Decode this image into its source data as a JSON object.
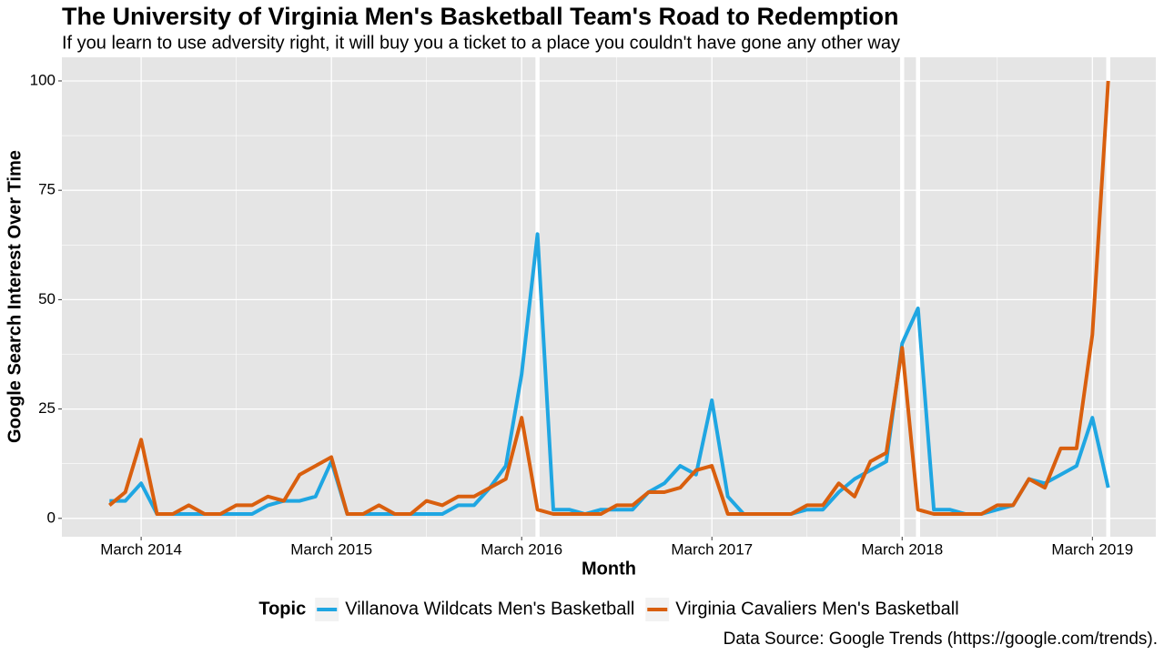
{
  "chart_data": {
    "type": "line",
    "title": "The University of Virginia Men's Basketball Team's Road to Redemption",
    "subtitle": "If you learn to use adversity right, it will buy you a ticket to a place you couldn't have gone any other way",
    "x_label": "Month",
    "y_label": "Google Search Interest Over Time",
    "legend_title": "Topic",
    "caption": "Data Source: Google Trends (https://google.com/trends).",
    "legend_position": "bottom",
    "grid": true,
    "x": [
      "2014-01",
      "2014-02",
      "2014-03",
      "2014-04",
      "2014-05",
      "2014-06",
      "2014-07",
      "2014-08",
      "2014-09",
      "2014-10",
      "2014-11",
      "2014-12",
      "2015-01",
      "2015-02",
      "2015-03",
      "2015-04",
      "2015-05",
      "2015-06",
      "2015-07",
      "2015-08",
      "2015-09",
      "2015-10",
      "2015-11",
      "2015-12",
      "2016-01",
      "2016-02",
      "2016-03",
      "2016-04",
      "2016-05",
      "2016-06",
      "2016-07",
      "2016-08",
      "2016-09",
      "2016-10",
      "2016-11",
      "2016-12",
      "2017-01",
      "2017-02",
      "2017-03",
      "2017-04",
      "2017-05",
      "2017-06",
      "2017-07",
      "2017-08",
      "2017-09",
      "2017-10",
      "2017-11",
      "2017-12",
      "2018-01",
      "2018-02",
      "2018-03",
      "2018-04",
      "2018-05",
      "2018-06",
      "2018-07",
      "2018-08",
      "2018-09",
      "2018-10",
      "2018-11",
      "2018-12",
      "2019-01",
      "2019-02",
      "2019-03",
      "2019-04"
    ],
    "series": [
      {
        "name": "Villanova Wildcats Men's Basketball",
        "color": "#1fa6e2",
        "values": [
          4,
          4,
          8,
          1,
          1,
          1,
          1,
          1,
          1,
          1,
          3,
          4,
          4,
          5,
          13,
          1,
          1,
          1,
          1,
          1,
          1,
          1,
          3,
          3,
          7,
          12,
          33,
          65,
          2,
          2,
          1,
          2,
          2,
          2,
          6,
          8,
          12,
          10,
          27,
          5,
          1,
          1,
          1,
          1,
          2,
          2,
          6,
          9,
          11,
          13,
          40,
          48,
          2,
          2,
          1,
          1,
          2,
          3,
          9,
          8,
          10,
          12,
          23,
          7
        ]
      },
      {
        "name": "Virginia Cavaliers Men's Basketball",
        "color": "#d95f0e",
        "values": [
          3,
          6,
          18,
          1,
          1,
          3,
          1,
          1,
          3,
          3,
          5,
          4,
          10,
          12,
          14,
          1,
          1,
          3,
          1,
          1,
          4,
          3,
          5,
          5,
          7,
          9,
          23,
          2,
          1,
          1,
          1,
          1,
          3,
          3,
          6,
          6,
          7,
          11,
          12,
          1,
          1,
          1,
          1,
          1,
          3,
          3,
          8,
          5,
          13,
          15,
          39,
          2,
          1,
          1,
          1,
          1,
          3,
          3,
          9,
          7,
          16,
          16,
          42,
          100
        ]
      }
    ],
    "vlines": [
      "2016-04",
      "2018-03",
      "2018-04",
      "2019-04"
    ],
    "xlim": [
      "2013-10",
      "2019-07"
    ],
    "xticks": [
      {
        "value": "2014-03",
        "label": "March 2014"
      },
      {
        "value": "2015-03",
        "label": "March 2015"
      },
      {
        "value": "2016-03",
        "label": "March 2016"
      },
      {
        "value": "2017-03",
        "label": "March 2017"
      },
      {
        "value": "2018-03",
        "label": "March 2018"
      },
      {
        "value": "2019-03",
        "label": "March 2019"
      }
    ],
    "ylim": [
      -4.2,
      105.4
    ],
    "yticks": [
      0,
      25,
      50,
      75,
      100
    ]
  }
}
